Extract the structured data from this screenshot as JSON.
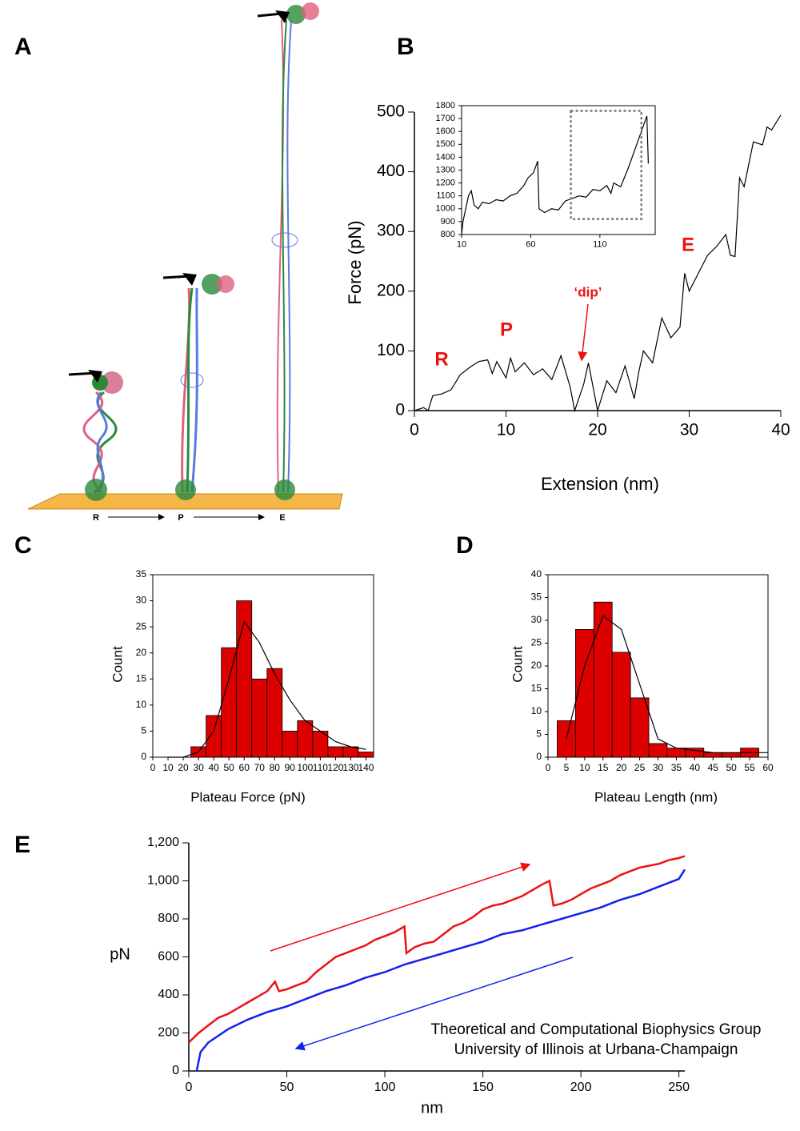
{
  "panels": [
    "A",
    "B",
    "C",
    "D",
    "E"
  ],
  "illustration": {
    "stages": [
      "R",
      "P",
      "E"
    ]
  },
  "credit": [
    "Theoretical and Computational Biophysics Group",
    "University of Illinois at Urbana-Champaign"
  ],
  "chart_data": [
    {
      "type": "line",
      "xlabel": "Extension (nm)",
      "ylabel": "Force (pN)",
      "annotations": [
        "R",
        "P",
        "‘dip’",
        "E"
      ],
      "xlim": [
        0,
        40
      ],
      "ylim": [
        0,
        500
      ],
      "xticks": [
        0,
        10,
        20,
        30,
        40
      ],
      "yticks": [
        0,
        100,
        200,
        300,
        400,
        500
      ],
      "series": [
        {
          "color": "#000000",
          "x": [
            0,
            1,
            1.5,
            2,
            3,
            4,
            5,
            6,
            7,
            8,
            8.5,
            9,
            10,
            10.5,
            11,
            12,
            13,
            14,
            15,
            16,
            17,
            17.5,
            18.5,
            19,
            20,
            21,
            22,
            23,
            24,
            24.5,
            25,
            26,
            27,
            28,
            29,
            29.5,
            30,
            31,
            32,
            33,
            34,
            34.5,
            35,
            35.5,
            36,
            37,
            38,
            38.5,
            39,
            40
          ],
          "values": [
            0,
            5,
            0,
            25,
            28,
            35,
            60,
            72,
            82,
            85,
            62,
            82,
            55,
            88,
            65,
            80,
            60,
            70,
            52,
            92,
            40,
            0,
            45,
            80,
            0,
            50,
            30,
            75,
            20,
            65,
            100,
            80,
            155,
            122,
            140,
            230,
            200,
            230,
            260,
            275,
            295,
            260,
            258,
            390,
            375,
            450,
            445,
            475,
            470,
            495
          ]
        }
      ]
    },
    {
      "type": "line",
      "xlim": [
        10,
        150
      ],
      "ylim": [
        800,
        1800
      ],
      "xticks": [
        10,
        60,
        110
      ],
      "yticks": [
        800,
        900,
        1000,
        1100,
        1200,
        1300,
        1400,
        1500,
        1600,
        1700,
        1800
      ],
      "highlight": {
        "x": [
          89,
          140
        ],
        "y": [
          920,
          1760
        ]
      },
      "series": [
        {
          "color": "#000000",
          "x": [
            10,
            11,
            13,
            15,
            17,
            19,
            22,
            25,
            30,
            35,
            40,
            45,
            50,
            55,
            58,
            62,
            65,
            66,
            70,
            75,
            80,
            85,
            90,
            95,
            100,
            105,
            110,
            115,
            118,
            120,
            125,
            130,
            135,
            140,
            144,
            145
          ],
          "values": [
            800,
            900,
            1000,
            1100,
            1140,
            1030,
            1000,
            1050,
            1040,
            1070,
            1060,
            1100,
            1120,
            1180,
            1240,
            1280,
            1370,
            1000,
            970,
            1000,
            990,
            1060,
            1080,
            1100,
            1090,
            1150,
            1140,
            1180,
            1120,
            1200,
            1170,
            1300,
            1450,
            1600,
            1720,
            1350
          ]
        }
      ]
    },
    {
      "type": "histogram",
      "xlabel": "Plateau Force (pN)",
      "ylabel": "Count",
      "color": "#dd0000",
      "bins": [
        25,
        35,
        45,
        55,
        65,
        75,
        85,
        95,
        105,
        115,
        125,
        135,
        145
      ],
      "counts": [
        2,
        8,
        21,
        30,
        15,
        17,
        5,
        7,
        5,
        2,
        2,
        1
      ],
      "fit": {
        "x": [
          10,
          20,
          30,
          40,
          50,
          60,
          70,
          80,
          90,
          100,
          110,
          120,
          130,
          140
        ],
        "y": [
          0,
          0,
          1,
          5,
          15,
          26,
          22,
          16,
          11,
          7,
          5,
          3,
          2,
          1.5
        ]
      },
      "xlim": [
        0,
        145
      ],
      "ylim": [
        0,
        35
      ],
      "xticks": [
        0,
        10,
        20,
        30,
        40,
        50,
        60,
        70,
        80,
        90,
        100,
        110,
        120,
        130,
        140
      ],
      "yticks": [
        0,
        5,
        10,
        15,
        20,
        25,
        30,
        35
      ]
    },
    {
      "type": "histogram",
      "xlabel": "Plateau Length (nm)",
      "ylabel": "Count",
      "color": "#dd0000",
      "bins": [
        2.5,
        7.5,
        12.5,
        17.5,
        22.5,
        27.5,
        32.5,
        37.5,
        42.5,
        47.5,
        52.5,
        57.5
      ],
      "counts": [
        8,
        28,
        34,
        23,
        13,
        3,
        2,
        2,
        1,
        1,
        2
      ],
      "fit": {
        "x": [
          5,
          10,
          15,
          20,
          25,
          30,
          35,
          40,
          45,
          50,
          55,
          60
        ],
        "y": [
          4,
          20,
          31,
          28,
          16,
          4,
          2,
          1.5,
          1,
          1,
          1,
          1
        ]
      },
      "xlim": [
        0,
        60
      ],
      "ylim": [
        0,
        40
      ],
      "xticks": [
        0,
        5,
        10,
        15,
        20,
        25,
        30,
        35,
        40,
        45,
        50,
        55,
        60
      ],
      "yticks": [
        0,
        5,
        10,
        15,
        20,
        25,
        30,
        35,
        40
      ]
    },
    {
      "type": "line",
      "xlabel": "nm",
      "ylabel": "pN",
      "xlim": [
        0,
        253
      ],
      "ylim": [
        0,
        1200
      ],
      "xticks": [
        0,
        50,
        100,
        150,
        200,
        250
      ],
      "yticks": [
        0,
        200,
        400,
        600,
        800,
        {
          "value": 1000,
          "label": "1,000"
        },
        {
          "value": 1200,
          "label": "1,200"
        }
      ],
      "series": [
        {
          "color": "#ee1111",
          "x": [
            0,
            5,
            10,
            15,
            20,
            25,
            30,
            35,
            40,
            44,
            46,
            50,
            55,
            60,
            65,
            70,
            75,
            80,
            85,
            90,
            95,
            100,
            105,
            110,
            111,
            115,
            120,
            125,
            130,
            135,
            140,
            145,
            150,
            155,
            160,
            165,
            170,
            175,
            180,
            184,
            186,
            190,
            195,
            200,
            205,
            210,
            215,
            220,
            225,
            230,
            235,
            240,
            245,
            250,
            253
          ],
          "values": [
            150,
            200,
            240,
            280,
            300,
            330,
            360,
            390,
            420,
            470,
            420,
            430,
            450,
            470,
            520,
            560,
            600,
            620,
            640,
            660,
            690,
            710,
            730,
            760,
            620,
            650,
            670,
            680,
            720,
            760,
            780,
            810,
            850,
            870,
            880,
            900,
            920,
            950,
            980,
            1000,
            870,
            880,
            900,
            930,
            960,
            980,
            1000,
            1030,
            1050,
            1070,
            1080,
            1090,
            1110,
            1120,
            1130
          ]
        },
        {
          "color": "#1122ee",
          "x": [
            4,
            6,
            10,
            20,
            30,
            40,
            50,
            60,
            70,
            80,
            90,
            100,
            110,
            120,
            130,
            140,
            150,
            160,
            170,
            180,
            190,
            200,
            210,
            220,
            230,
            240,
            250,
            253
          ],
          "values": [
            0,
            100,
            150,
            220,
            270,
            310,
            340,
            380,
            420,
            450,
            490,
            520,
            560,
            590,
            620,
            650,
            680,
            720,
            740,
            770,
            800,
            830,
            860,
            900,
            930,
            970,
            1010,
            1060
          ]
        }
      ]
    }
  ]
}
